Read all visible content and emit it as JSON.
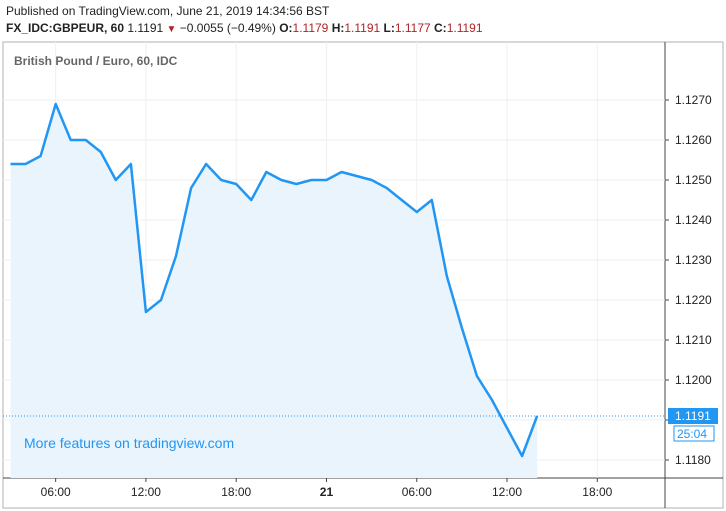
{
  "header": {
    "published": "Published on TradingView.com, June 21, 2019 14:34:56 BST",
    "symbol": "FX_IDC:GBPEUR, 60",
    "last": "1.1191",
    "change": "−0.0055 (−0.49%)",
    "open_label": "O:",
    "open": "1.1179",
    "high_label": "H:",
    "high": "1.1191",
    "low_label": "L:",
    "low": "1.1177",
    "close_label": "C:",
    "close": "1.1191"
  },
  "chart_data": {
    "type": "area",
    "title": "British Pound / Euro, 60, IDC",
    "watermark": "More features on tradingview.com",
    "x_ticks": [
      {
        "label": "06:00",
        "x": 6
      },
      {
        "label": "12:00",
        "x": 12
      },
      {
        "label": "18:00",
        "x": 18
      },
      {
        "label": "21",
        "x": 24
      },
      {
        "label": "06:00",
        "x": 30
      },
      {
        "label": "12:00",
        "x": 36
      },
      {
        "label": "18:00",
        "x": 42
      }
    ],
    "y_ticks": [
      1.118,
      1.119,
      1.12,
      1.121,
      1.122,
      1.123,
      1.124,
      1.125,
      1.126,
      1.127
    ],
    "y_tick_labels": [
      "1.1180",
      "1.1190",
      "1.1200",
      "1.1210",
      "1.1220",
      "1.1230",
      "1.1240",
      "1.1250",
      "1.1260",
      "1.1270"
    ],
    "ylim": [
      1.11755,
      1.12845
    ],
    "xlim": [
      2.5,
      46.5
    ],
    "series": [
      {
        "x": [
          3,
          4,
          5,
          6,
          7,
          8,
          9,
          10,
          11,
          12,
          13,
          14,
          15,
          16,
          17,
          18,
          19,
          20,
          21,
          22,
          23,
          24,
          25,
          26,
          27,
          28,
          29,
          30,
          31,
          32,
          33,
          34,
          35,
          36,
          37
        ],
        "values": [
          1.1254,
          1.1254,
          1.1256,
          1.1269,
          1.126,
          1.126,
          1.1257,
          1.125,
          1.1254,
          1.1217,
          1.122,
          1.1231,
          1.1248,
          1.1254,
          1.125,
          1.1249,
          1.1245,
          1.1252,
          1.125,
          1.1249,
          1.125,
          1.125,
          1.1252,
          1.1251,
          1.125,
          1.1248,
          1.1245,
          1.1242,
          1.1245,
          1.1226,
          1.1213,
          1.1201,
          1.1195,
          1.1188,
          1.1181
        ]
      }
    ],
    "last_point": {
      "x": 38,
      "value": 1.1191
    },
    "last_price_label": "1.1191",
    "countdown": "25:04",
    "line_color": "#2196f3",
    "fill_color": "#eaf4fd",
    "grid": true
  }
}
